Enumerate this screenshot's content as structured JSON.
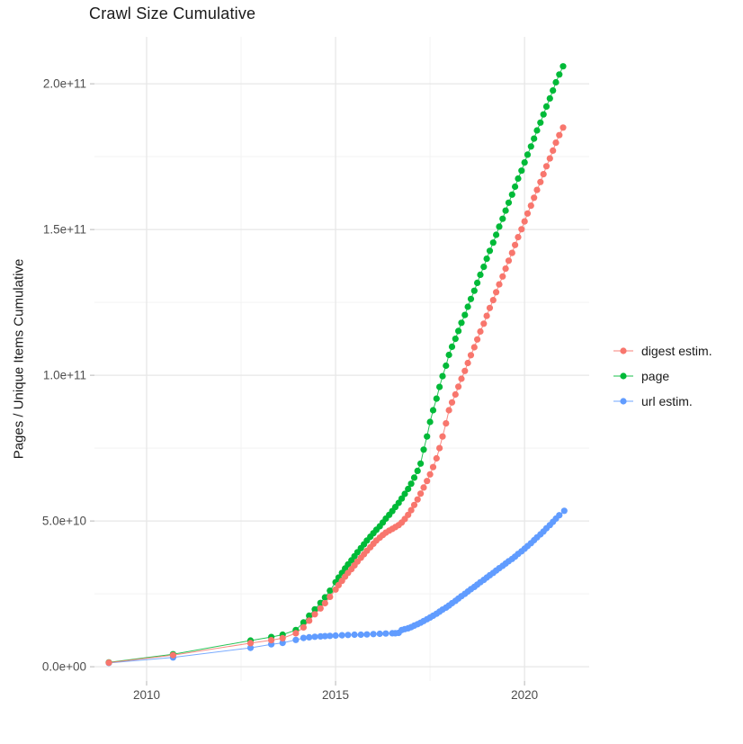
{
  "figure": {
    "title": "Crawl Size Cumulative",
    "y_axis_title": "Pages / Unique Items Cumulative"
  },
  "legend": {
    "items": [
      {
        "label": "digest estim.",
        "color": "#F8766D"
      },
      {
        "label": "page",
        "color": "#00BA38"
      },
      {
        "label": "url estim.",
        "color": "#619CFF"
      }
    ]
  },
  "chart_data": {
    "type": "line",
    "subtype": "line+points, ggplot style",
    "title": "Crawl Size Cumulative",
    "xlabel": "",
    "ylabel": "Pages / Unique Items Cumulative",
    "value_unit": "1e9 (all series values are billions of items)",
    "x_unit": "decimal year",
    "xlim": [
      2008.62,
      2021.71
    ],
    "ylim_e9": [
      -4.9,
      216.1
    ],
    "grid": "major and minor gridlines, light gray on white, no panel border",
    "legend_position": "right-center",
    "background": "#ffffff",
    "major_grid_color": "#e7e7e7",
    "minor_grid_color": "#f3f3f3",
    "tick_color": "#c2c2c2",
    "axis_text_color": "#4d4d4d",
    "x_ticks": [
      {
        "value": 2010,
        "label": "2010"
      },
      {
        "value": 2015,
        "label": "2015"
      },
      {
        "value": 2020,
        "label": "2020"
      }
    ],
    "x_minor_ticks": [
      2012.5,
      2017.5
    ],
    "y_ticks": [
      {
        "value_e9": 0,
        "label": "0.0e+00"
      },
      {
        "value_e9": 50,
        "label": "5.0e+10"
      },
      {
        "value_e9": 100,
        "label": "1.0e+11"
      },
      {
        "value_e9": 150,
        "label": "1.5e+11"
      },
      {
        "value_e9": 200,
        "label": "2.0e+11"
      }
    ],
    "y_minor_ticks_e9": [
      25,
      75,
      125,
      175
    ],
    "series": [
      {
        "name": "digest estim.",
        "color": "#F8766D",
        "points": [
          [
            2009.0,
            1.4
          ],
          [
            2010.7,
            4.0
          ],
          [
            2012.75,
            8.1
          ],
          [
            2013.3,
            9.1
          ],
          [
            2013.6,
            9.8
          ],
          [
            2013.95,
            11.5
          ],
          [
            2014.15,
            13.5
          ],
          [
            2014.3,
            15.8
          ],
          [
            2014.45,
            18.0
          ],
          [
            2014.6,
            20.0
          ],
          [
            2014.72,
            21.8
          ],
          [
            2014.85,
            24.0
          ],
          [
            2015.0,
            26.5
          ],
          [
            2015.08,
            28.0
          ],
          [
            2015.17,
            29.5
          ],
          [
            2015.25,
            30.9
          ],
          [
            2015.33,
            32.2
          ],
          [
            2015.42,
            33.5
          ],
          [
            2015.5,
            34.8
          ],
          [
            2015.58,
            36.1
          ],
          [
            2015.67,
            37.4
          ],
          [
            2015.75,
            38.6
          ],
          [
            2015.83,
            39.8
          ],
          [
            2015.92,
            41.0
          ],
          [
            2016.0,
            42.2
          ],
          [
            2016.08,
            43.3
          ],
          [
            2016.17,
            44.3
          ],
          [
            2016.25,
            45.2
          ],
          [
            2016.33,
            46.0
          ],
          [
            2016.42,
            46.7
          ],
          [
            2016.5,
            47.3
          ],
          [
            2016.58,
            47.9
          ],
          [
            2016.67,
            48.6
          ],
          [
            2016.75,
            49.5
          ],
          [
            2016.83,
            50.7
          ],
          [
            2016.92,
            52.1
          ],
          [
            2017.0,
            53.7
          ],
          [
            2017.08,
            55.5
          ],
          [
            2017.17,
            57.4
          ],
          [
            2017.25,
            59.4
          ],
          [
            2017.33,
            61.5
          ],
          [
            2017.42,
            63.7
          ],
          [
            2017.5,
            66.0
          ],
          [
            2017.58,
            68.5
          ],
          [
            2017.67,
            71.5
          ],
          [
            2017.75,
            75.0
          ],
          [
            2017.83,
            79.0
          ],
          [
            2017.92,
            83.5
          ],
          [
            2018.0,
            88.0
          ],
          [
            2018.08,
            90.7
          ],
          [
            2018.17,
            93.4
          ],
          [
            2018.25,
            96.1
          ],
          [
            2018.33,
            98.8
          ],
          [
            2018.42,
            101.5
          ],
          [
            2018.5,
            104.2
          ],
          [
            2018.58,
            106.9
          ],
          [
            2018.67,
            109.6
          ],
          [
            2018.75,
            112.3
          ],
          [
            2018.83,
            115.0
          ],
          [
            2018.92,
            117.7
          ],
          [
            2019.0,
            120.4
          ],
          [
            2019.08,
            123.1
          ],
          [
            2019.17,
            125.8
          ],
          [
            2019.25,
            128.5
          ],
          [
            2019.33,
            131.2
          ],
          [
            2019.42,
            133.9
          ],
          [
            2019.5,
            136.6
          ],
          [
            2019.58,
            139.3
          ],
          [
            2019.67,
            142.0
          ],
          [
            2019.75,
            144.7
          ],
          [
            2019.83,
            147.4
          ],
          [
            2019.92,
            150.1
          ],
          [
            2020.0,
            152.8
          ],
          [
            2020.08,
            155.5
          ],
          [
            2020.17,
            158.2
          ],
          [
            2020.25,
            160.9
          ],
          [
            2020.33,
            163.6
          ],
          [
            2020.42,
            166.3
          ],
          [
            2020.5,
            169.0
          ],
          [
            2020.58,
            171.7
          ],
          [
            2020.67,
            174.4
          ],
          [
            2020.75,
            177.1
          ],
          [
            2020.83,
            179.8
          ],
          [
            2020.92,
            182.4
          ],
          [
            2021.02,
            185.0
          ]
        ]
      },
      {
        "name": "page",
        "color": "#00BA38",
        "points": [
          [
            2009.0,
            1.5
          ],
          [
            2010.7,
            4.3
          ],
          [
            2012.75,
            9.0
          ],
          [
            2013.3,
            10.2
          ],
          [
            2013.6,
            11.0
          ],
          [
            2013.95,
            12.6
          ],
          [
            2014.15,
            15.2
          ],
          [
            2014.3,
            17.5
          ],
          [
            2014.45,
            19.7
          ],
          [
            2014.6,
            21.9
          ],
          [
            2014.72,
            23.8
          ],
          [
            2014.85,
            26.1
          ],
          [
            2015.0,
            29.0
          ],
          [
            2015.08,
            30.6
          ],
          [
            2015.17,
            32.2
          ],
          [
            2015.25,
            33.7
          ],
          [
            2015.33,
            35.1
          ],
          [
            2015.42,
            36.5
          ],
          [
            2015.5,
            37.9
          ],
          [
            2015.58,
            39.3
          ],
          [
            2015.67,
            40.7
          ],
          [
            2015.75,
            42.0
          ],
          [
            2015.83,
            43.3
          ],
          [
            2015.92,
            44.6
          ],
          [
            2016.0,
            45.8
          ],
          [
            2016.08,
            47.0
          ],
          [
            2016.17,
            48.2
          ],
          [
            2016.25,
            49.5
          ],
          [
            2016.33,
            50.8
          ],
          [
            2016.42,
            52.1
          ],
          [
            2016.5,
            53.4
          ],
          [
            2016.58,
            54.8
          ],
          [
            2016.67,
            56.2
          ],
          [
            2016.75,
            57.7
          ],
          [
            2016.83,
            59.3
          ],
          [
            2016.92,
            61.0
          ],
          [
            2017.0,
            62.8
          ],
          [
            2017.08,
            64.9
          ],
          [
            2017.17,
            67.2
          ],
          [
            2017.25,
            69.7
          ],
          [
            2017.33,
            74.5
          ],
          [
            2017.42,
            79.0
          ],
          [
            2017.5,
            84.0
          ],
          [
            2017.58,
            88.0
          ],
          [
            2017.67,
            92.0
          ],
          [
            2017.75,
            96.0
          ],
          [
            2017.83,
            99.7
          ],
          [
            2017.92,
            103.3
          ],
          [
            2018.0,
            107.0
          ],
          [
            2018.08,
            109.8
          ],
          [
            2018.17,
            112.5
          ],
          [
            2018.25,
            115.2
          ],
          [
            2018.33,
            118.0
          ],
          [
            2018.42,
            120.7
          ],
          [
            2018.5,
            123.5
          ],
          [
            2018.58,
            126.2
          ],
          [
            2018.67,
            129.0
          ],
          [
            2018.75,
            131.7
          ],
          [
            2018.83,
            134.5
          ],
          [
            2018.92,
            137.2
          ],
          [
            2019.0,
            140.0
          ],
          [
            2019.08,
            142.7
          ],
          [
            2019.17,
            145.5
          ],
          [
            2019.25,
            148.2
          ],
          [
            2019.33,
            151.0
          ],
          [
            2019.42,
            153.7
          ],
          [
            2019.5,
            156.5
          ],
          [
            2019.58,
            159.2
          ],
          [
            2019.67,
            162.0
          ],
          [
            2019.75,
            164.7
          ],
          [
            2019.83,
            167.5
          ],
          [
            2019.92,
            170.2
          ],
          [
            2020.0,
            173.0
          ],
          [
            2020.08,
            175.7
          ],
          [
            2020.17,
            178.5
          ],
          [
            2020.25,
            181.2
          ],
          [
            2020.33,
            184.0
          ],
          [
            2020.42,
            186.7
          ],
          [
            2020.5,
            189.5
          ],
          [
            2020.58,
            192.2
          ],
          [
            2020.67,
            195.0
          ],
          [
            2020.75,
            197.7
          ],
          [
            2020.83,
            200.5
          ],
          [
            2020.92,
            203.2
          ],
          [
            2021.02,
            206.0
          ]
        ]
      },
      {
        "name": "url estim.",
        "color": "#619CFF",
        "points": [
          [
            2009.0,
            1.3
          ],
          [
            2010.7,
            3.2
          ],
          [
            2012.75,
            6.5
          ],
          [
            2013.3,
            7.7
          ],
          [
            2013.6,
            8.2
          ],
          [
            2013.95,
            9.2
          ],
          [
            2014.15,
            9.9
          ],
          [
            2014.3,
            10.1
          ],
          [
            2014.45,
            10.3
          ],
          [
            2014.6,
            10.4
          ],
          [
            2014.72,
            10.5
          ],
          [
            2014.85,
            10.6
          ],
          [
            2015.0,
            10.7
          ],
          [
            2015.17,
            10.8
          ],
          [
            2015.33,
            10.9
          ],
          [
            2015.5,
            11.0
          ],
          [
            2015.67,
            11.0
          ],
          [
            2015.83,
            11.1
          ],
          [
            2016.0,
            11.2
          ],
          [
            2016.17,
            11.3
          ],
          [
            2016.33,
            11.4
          ],
          [
            2016.5,
            11.5
          ],
          [
            2016.58,
            11.5
          ],
          [
            2016.67,
            11.6
          ],
          [
            2016.75,
            12.6
          ],
          [
            2016.83,
            12.9
          ],
          [
            2016.92,
            13.2
          ],
          [
            2017.0,
            13.6
          ],
          [
            2017.08,
            14.1
          ],
          [
            2017.17,
            14.6
          ],
          [
            2017.25,
            15.1
          ],
          [
            2017.33,
            15.7
          ],
          [
            2017.42,
            16.3
          ],
          [
            2017.5,
            16.9
          ],
          [
            2017.58,
            17.5
          ],
          [
            2017.67,
            18.2
          ],
          [
            2017.75,
            18.9
          ],
          [
            2017.83,
            19.6
          ],
          [
            2017.92,
            20.3
          ],
          [
            2018.0,
            21.0
          ],
          [
            2018.08,
            21.8
          ],
          [
            2018.17,
            22.6
          ],
          [
            2018.25,
            23.4
          ],
          [
            2018.33,
            24.2
          ],
          [
            2018.42,
            25.0
          ],
          [
            2018.5,
            25.8
          ],
          [
            2018.58,
            26.6
          ],
          [
            2018.67,
            27.4
          ],
          [
            2018.75,
            28.2
          ],
          [
            2018.83,
            29.0
          ],
          [
            2018.92,
            29.8
          ],
          [
            2019.0,
            30.6
          ],
          [
            2019.08,
            31.4
          ],
          [
            2019.17,
            32.2
          ],
          [
            2019.25,
            33.0
          ],
          [
            2019.33,
            33.8
          ],
          [
            2019.42,
            34.6
          ],
          [
            2019.5,
            35.4
          ],
          [
            2019.58,
            36.2
          ],
          [
            2019.67,
            37.0
          ],
          [
            2019.75,
            37.8
          ],
          [
            2019.83,
            38.7
          ],
          [
            2019.92,
            39.6
          ],
          [
            2020.0,
            40.5
          ],
          [
            2020.08,
            41.4
          ],
          [
            2020.17,
            42.4
          ],
          [
            2020.25,
            43.4
          ],
          [
            2020.33,
            44.4
          ],
          [
            2020.42,
            45.4
          ],
          [
            2020.5,
            46.4
          ],
          [
            2020.58,
            47.5
          ],
          [
            2020.67,
            48.6
          ],
          [
            2020.75,
            49.7
          ],
          [
            2020.83,
            50.8
          ],
          [
            2020.92,
            52.0
          ],
          [
            2021.05,
            53.5
          ]
        ]
      }
    ]
  }
}
